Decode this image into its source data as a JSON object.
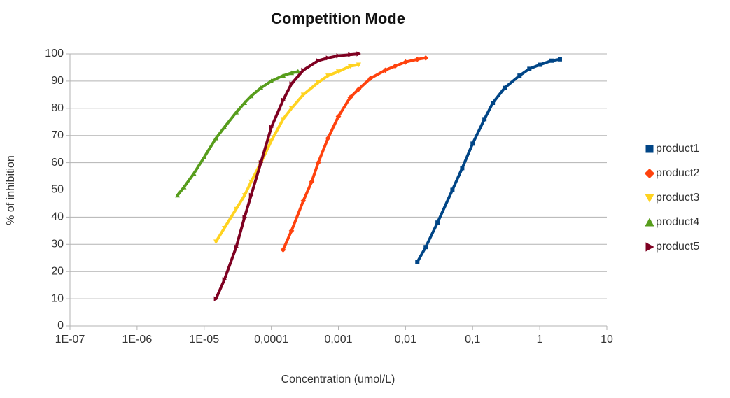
{
  "chart_data": {
    "type": "scatter",
    "title": "Competition Mode",
    "x_label": "Concentration (umol/L)",
    "y_label": "% of inhibition",
    "xlim": [
      1e-07,
      10
    ],
    "xscale": "log",
    "xticks": [
      {
        "value": 1e-07,
        "label": "1E-07"
      },
      {
        "value": 1e-06,
        "label": "1E-06"
      },
      {
        "value": 1e-05,
        "label": "1E-05"
      },
      {
        "value": 0.0001,
        "label": "0,0001"
      },
      {
        "value": 0.001,
        "label": "0,001"
      },
      {
        "value": 0.01,
        "label": "0,01"
      },
      {
        "value": 0.1,
        "label": "0,1"
      },
      1,
      10
    ],
    "ylim": [
      0,
      100
    ],
    "yticks": [
      0,
      10,
      20,
      30,
      40,
      50,
      60,
      70,
      80,
      90,
      100
    ],
    "grid": true,
    "legend": "right",
    "series": [
      {
        "name": "product1",
        "color": "#004586",
        "marker": "square",
        "x": [
          0.015,
          0.02,
          0.03,
          0.05,
          0.07,
          0.1,
          0.15,
          0.2,
          0.3,
          0.5,
          0.7,
          1,
          1.5,
          2
        ],
        "values": [
          23.5,
          29,
          38,
          50,
          58,
          67,
          76,
          82,
          87.5,
          92,
          94.5,
          96,
          97.5,
          98
        ]
      },
      {
        "name": "product2",
        "color": "#ff420e",
        "marker": "diamond",
        "x": [
          0.00015,
          0.0002,
          0.0003,
          0.0004,
          0.0005,
          0.0007,
          0.001,
          0.0015,
          0.002,
          0.003,
          0.005,
          0.007,
          0.01,
          0.015,
          0.02
        ],
        "values": [
          28,
          35,
          46,
          53,
          60,
          69,
          77,
          84,
          87,
          91,
          94,
          95.5,
          97,
          98,
          98.5
        ]
      },
      {
        "name": "product3",
        "color": "#ffd320",
        "marker": "triangle-down",
        "x": [
          1.5e-05,
          2e-05,
          3e-05,
          4e-05,
          5e-05,
          7e-05,
          0.0001,
          0.00015,
          0.0002,
          0.0003,
          0.0005,
          0.0007,
          0.001,
          0.0015,
          0.002
        ],
        "values": [
          31,
          36,
          43,
          48,
          53,
          60,
          68,
          76,
          80,
          85,
          89.5,
          92,
          93.5,
          95.5,
          96
        ]
      },
      {
        "name": "product4",
        "color": "#579d1c",
        "marker": "triangle-up",
        "x": [
          4e-06,
          5e-06,
          7e-06,
          1e-05,
          1.5e-05,
          2e-05,
          3e-05,
          4e-05,
          5e-05,
          7e-05,
          0.0001,
          0.00015,
          0.0002,
          0.00025
        ],
        "values": [
          48,
          51,
          56,
          62,
          69,
          73,
          78.5,
          82,
          84.5,
          87.5,
          90,
          92,
          93,
          93.5
        ]
      },
      {
        "name": "product5",
        "color": "#7e0021",
        "marker": "triangle-right",
        "x": [
          1.5e-05,
          2e-05,
          3e-05,
          4e-05,
          5e-05,
          7e-05,
          0.0001,
          0.00015,
          0.0002,
          0.0003,
          0.0005,
          0.0007,
          0.001,
          0.0015,
          0.002
        ],
        "values": [
          10,
          17,
          29,
          40,
          48,
          60,
          73,
          83,
          89,
          94,
          97.5,
          98.5,
          99.3,
          99.7,
          100
        ]
      }
    ]
  }
}
